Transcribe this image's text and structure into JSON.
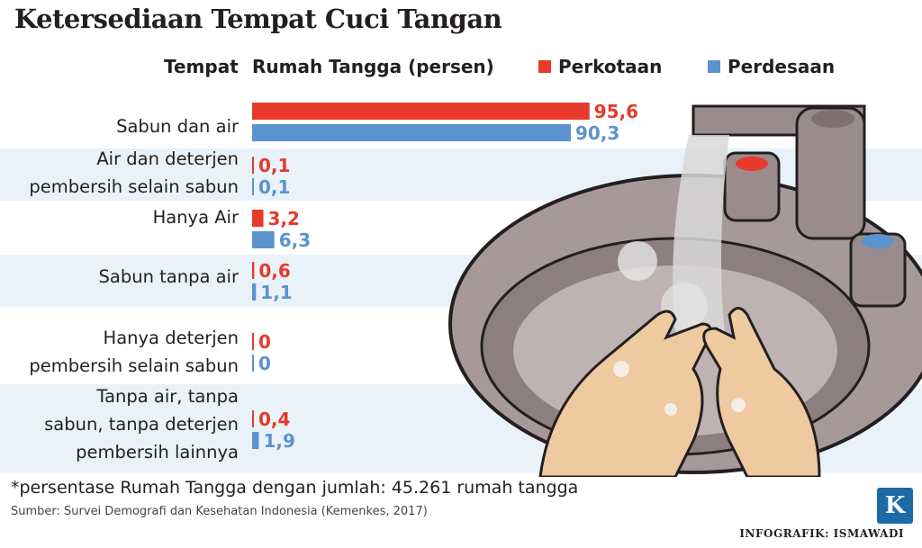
{
  "title": "Ketersediaan Tempat Cuci Tangan",
  "header": {
    "place_label": "Tempat",
    "metric_label": "Rumah Tangga (persen)"
  },
  "colors": {
    "urban": "#e8392b",
    "rural": "#5b93cf",
    "band": "#e9f2f9"
  },
  "chart_data": {
    "type": "bar",
    "orientation": "horizontal",
    "categories": [
      "Sabun dan air",
      "Air dan deterjen pembersih selain sabun",
      "Hanya Air",
      "Sabun tanpa air",
      "Hanya deterjen pembersih selain sabun",
      "Tanpa air, tanpa sabun, tanpa deterjen pembersih lainnya"
    ],
    "category_lines": [
      [
        "Sabun dan air"
      ],
      [
        "Air dan deterjen",
        "pembersih selain sabun"
      ],
      [
        "Hanya Air"
      ],
      [
        "Sabun tanpa air"
      ],
      [
        "Hanya deterjen",
        "pembersih selain sabun"
      ],
      [
        "Tanpa air, tanpa",
        "sabun, tanpa deterjen",
        "pembersih lainnya"
      ]
    ],
    "series": [
      {
        "name": "Perkotaan",
        "values": [
          95.6,
          0.1,
          3.2,
          0.6,
          0,
          0.4
        ],
        "labels": [
          "95,6",
          "0,1",
          "3,2",
          "0,6",
          "0",
          "0,4"
        ]
      },
      {
        "name": "Perdesaan",
        "values": [
          90.3,
          0.1,
          6.3,
          1.1,
          0,
          1.9
        ],
        "labels": [
          "90,3",
          "0,1",
          "6,3",
          "1,1",
          "0",
          "1,9"
        ]
      }
    ],
    "xlim": [
      0,
      100
    ],
    "legend_position": "top"
  },
  "footnote": "*persentase Rumah Tangga dengan jumlah: 45.261 rumah tangga",
  "source": "Sumber: Survei Demografi dan Kesehatan Indonesia (Kemenkes, 2017)",
  "credit": "INFOGRAFIK: ISMAWADI",
  "logo_letter": "K"
}
